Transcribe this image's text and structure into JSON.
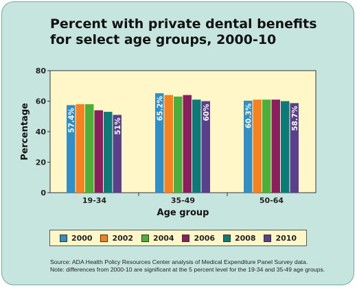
{
  "title_line1": "Percent with private dental benefits",
  "title_line2": "for select age groups, 2000-10",
  "source_line1": "Source: ADA Health Policy Resources Center analysis of Medical Expenditure Panel Survey data.",
  "source_line2": "Note: differences from 2000-10 are significant at the 5 percent level for the 19-34 and 35-49 age groups.",
  "colors": {
    "background": "#c6e5df",
    "plot_bg": "#fff7c8",
    "series": [
      "#2f8fc6",
      "#f5821f",
      "#4caf3a",
      "#8b1f5e",
      "#0b7a78",
      "#5a3f8c"
    ]
  },
  "chart_data": {
    "type": "bar",
    "categories": [
      "19-34",
      "35-49",
      "50-64"
    ],
    "series": [
      {
        "name": "2000",
        "values": [
          57.4,
          65.2,
          60.3
        ]
      },
      {
        "name": "2002",
        "values": [
          58,
          64,
          61
        ]
      },
      {
        "name": "2004",
        "values": [
          58,
          63,
          61
        ]
      },
      {
        "name": "2006",
        "values": [
          54,
          64,
          61
        ]
      },
      {
        "name": "2008",
        "values": [
          53,
          61,
          60
        ]
      },
      {
        "name": "2010",
        "values": [
          51,
          60,
          58.7
        ]
      }
    ],
    "data_labels": [
      {
        "category": 0,
        "series": 0,
        "text": "57.4%"
      },
      {
        "category": 0,
        "series": 5,
        "text": "51%"
      },
      {
        "category": 1,
        "series": 0,
        "text": "65.2%"
      },
      {
        "category": 1,
        "series": 5,
        "text": "60%"
      },
      {
        "category": 2,
        "series": 0,
        "text": "60.3%"
      },
      {
        "category": 2,
        "series": 5,
        "text": "58.7%"
      }
    ],
    "xlabel": "Age group",
    "ylabel": "Percentage",
    "ylim": [
      0,
      80
    ],
    "yticks": [
      "0",
      "20",
      "40",
      "60",
      "80"
    ],
    "grid": false,
    "legend": "bottom"
  }
}
